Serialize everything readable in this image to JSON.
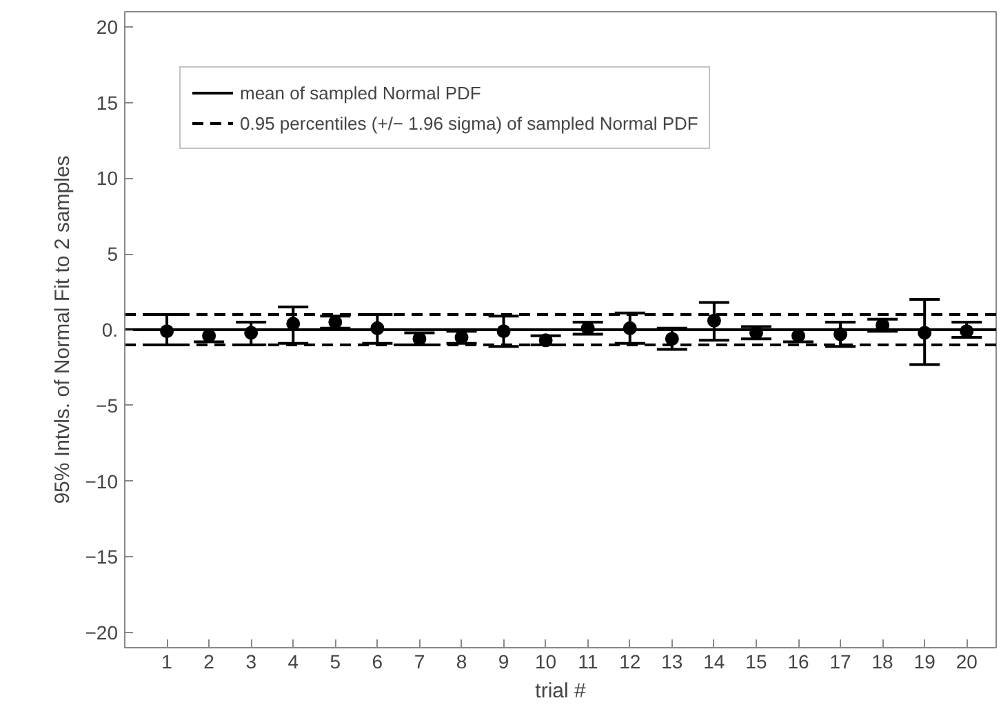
{
  "chart_data": {
    "type": "scatter",
    "xlabel": "trial #",
    "ylabel": "95% Intvls. of Normal Fit to 2 samples",
    "x": [
      1,
      2,
      3,
      4,
      5,
      6,
      7,
      8,
      9,
      10,
      11,
      12,
      13,
      14,
      15,
      16,
      17,
      18,
      19,
      20
    ],
    "values": [
      -0.1,
      -0.4,
      -0.2,
      0.4,
      0.5,
      0.1,
      -0.6,
      -0.5,
      -0.1,
      -0.7,
      0.1,
      0.1,
      -0.6,
      0.6,
      -0.2,
      -0.4,
      -0.3,
      0.3,
      -0.2,
      -0.1
    ],
    "errors": [
      [
        -1.0,
        1.0
      ],
      [
        -0.8,
        0.0
      ],
      [
        -1.0,
        0.5
      ],
      [
        -0.9,
        1.5
      ],
      [
        0.1,
        0.9
      ],
      [
        -0.9,
        1.0
      ],
      [
        -1.0,
        -0.2
      ],
      [
        -0.9,
        -0.1
      ],
      [
        -1.1,
        0.9
      ],
      [
        -1.0,
        -0.4
      ],
      [
        -0.3,
        0.5
      ],
      [
        -0.9,
        1.1
      ],
      [
        -1.3,
        0.1
      ],
      [
        -0.7,
        1.8
      ],
      [
        -0.6,
        0.2
      ],
      [
        -0.8,
        0.0
      ],
      [
        -1.1,
        0.5
      ],
      [
        -0.1,
        0.7
      ],
      [
        -2.3,
        2.0
      ],
      [
        -0.5,
        0.5
      ]
    ],
    "color": "#000000",
    "marker": "circle",
    "xlim": [
      0,
      20.7
    ],
    "ylim": [
      -21,
      21
    ],
    "xticks": [
      1,
      2,
      3,
      4,
      5,
      6,
      7,
      8,
      9,
      10,
      11,
      12,
      13,
      14,
      15,
      16,
      17,
      18,
      19,
      20
    ],
    "yticks": [
      -20,
      -15,
      -10,
      -5,
      {
        "value": 0,
        "label": "0."
      },
      5,
      10,
      15,
      20
    ],
    "ref_lines": [
      {
        "axis": "y",
        "value": 0,
        "label": "mean of sampled Normal PDF",
        "line_style": "solid",
        "color": "#000000"
      },
      {
        "axis": "y",
        "value": 1.0,
        "label": "0.95 percentiles (+/− 1.96 sigma) of sampled Normal PDF",
        "line_style": "dashed",
        "color": "#000000"
      },
      {
        "axis": "y",
        "value": -1.0,
        "label": null,
        "line_style": "dashed",
        "color": "#000000"
      }
    ],
    "grid": false,
    "legend": "top left"
  }
}
